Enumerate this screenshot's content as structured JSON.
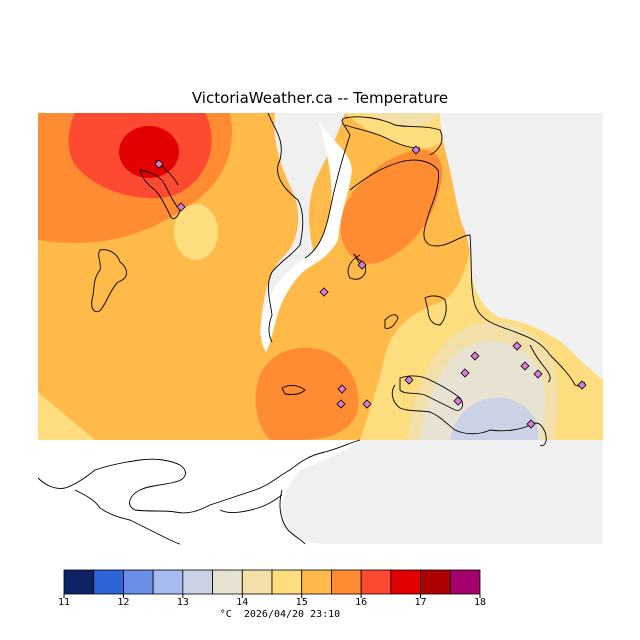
{
  "title": "VictoriaWeather.ca -- Temperature",
  "legend": {
    "unit": "°C",
    "timestamp": "2026/04/20 23:10",
    "ticks": [
      "11",
      "12",
      "13",
      "14",
      "15",
      "16",
      "17",
      "18"
    ],
    "bins": [
      {
        "from": 11.0,
        "to": 11.5,
        "color": "#0c2466"
      },
      {
        "from": 11.5,
        "to": 12.0,
        "color": "#2f63d8"
      },
      {
        "from": 12.0,
        "to": 12.5,
        "color": "#6a8ee6"
      },
      {
        "from": 12.5,
        "to": 13.0,
        "color": "#a8bbf0"
      },
      {
        "from": 13.0,
        "to": 13.5,
        "color": "#ccd2e6"
      },
      {
        "from": 13.5,
        "to": 14.0,
        "color": "#e8e2d2"
      },
      {
        "from": 14.0,
        "to": 14.5,
        "color": "#f2e0a8"
      },
      {
        "from": 14.5,
        "to": 15.0,
        "color": "#fddd7d"
      },
      {
        "from": 15.0,
        "to": 15.5,
        "color": "#ffba4a"
      },
      {
        "from": 15.5,
        "to": 16.0,
        "color": "#ff8b32"
      },
      {
        "from": 16.0,
        "to": 16.5,
        "color": "#ff4a32"
      },
      {
        "from": 16.5,
        "to": 17.0,
        "color": "#e20000"
      },
      {
        "from": 17.0,
        "to": 17.5,
        "color": "#ad0000"
      },
      {
        "from": 17.5,
        "to": 18.0,
        "color": "#a4006e"
      }
    ]
  },
  "colors": {
    "land_unanalysed": "#f0f0f0",
    "water": "#ffffff",
    "station_marker": "#d97bd9",
    "coastline": "#000000"
  },
  "stations": {
    "count": 16,
    "icon": "diamond-marker-icon"
  }
}
